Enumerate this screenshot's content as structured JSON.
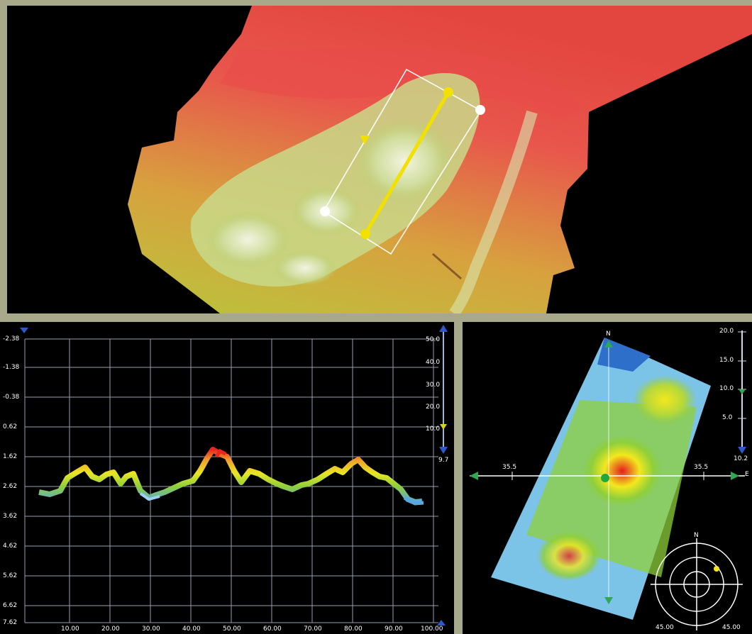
{
  "profile": {
    "left_axis": [
      "-2.38",
      "-1.38",
      "-0.38",
      "0.62",
      "1.62",
      "2.62",
      "3.62",
      "4.62",
      "5.62",
      "6.62",
      "7.62"
    ],
    "bottom_axis": [
      "10.00",
      "20.00",
      "30.00",
      "40.00",
      "50.00",
      "60.00",
      "70.00",
      "80.00",
      "90.00",
      "100.00"
    ],
    "right_axis": [
      "50.0",
      "40.0",
      "30.0",
      "20.0",
      "10.0"
    ],
    "right_bottom_value": "9.7"
  },
  "view3d": {
    "right_axis": [
      "20.0",
      "15.0",
      "10.0",
      "5.0"
    ],
    "right_bottom_value": "10.2",
    "horizontal_left_label": "35.5",
    "horizontal_right_label": "35.5",
    "east_label": "E",
    "north_label": "N",
    "compass": {
      "north_label": "N",
      "left_value": "45.00",
      "right_value": "45.00"
    }
  }
}
